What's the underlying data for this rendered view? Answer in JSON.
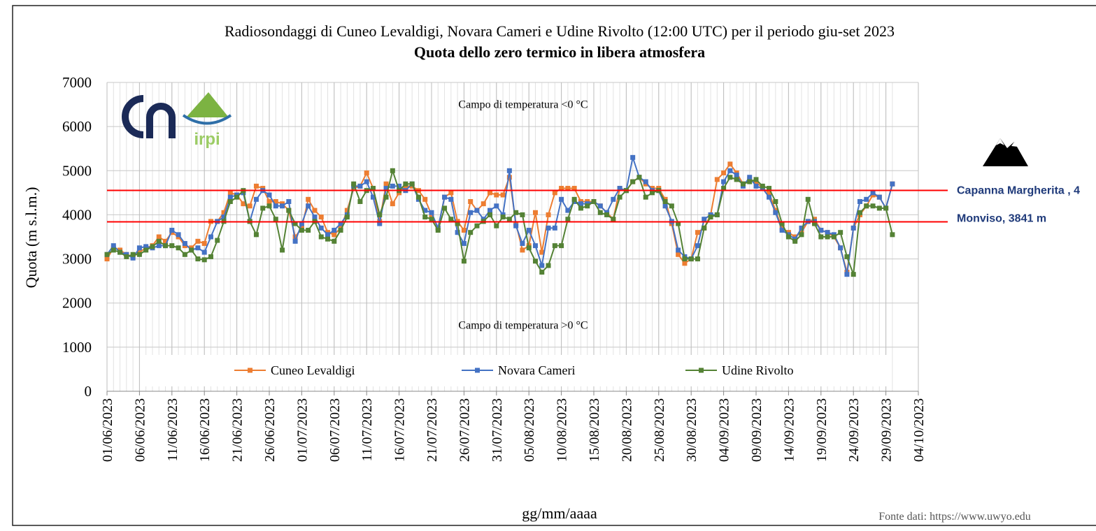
{
  "chart_data": {
    "type": "line",
    "title": "Radiosondaggi di Cuneo Levaldigi, Novara Cameri e Udine Rivolto (12:00 UTC) per il periodo giu-set 2023",
    "subtitle": "Quota dello zero termico in libera atmosfera",
    "y_label": "Quota (m s.l.m.)",
    "x_label": "gg/mm/aaaa",
    "source": "Fonte dati: https://www.uwyo.edu",
    "logo_text": "irpi",
    "annotations": [
      {
        "text": "Campo di temperatura <0 °C",
        "y": 6500
      },
      {
        "text": "Campo di temperatura >0 °C",
        "y": 1500
      }
    ],
    "reference_lines": [
      {
        "label": "Capanna Margherita , 4",
        "value": 4554,
        "color": "#ff0000"
      },
      {
        "label": "Monviso, 3841 m",
        "value": 3841,
        "color": "#ff0000"
      }
    ],
    "x": [
      "01/06/2023",
      "02/06/2023",
      "03/06/2023",
      "04/06/2023",
      "05/06/2023",
      "06/06/2023",
      "07/06/2023",
      "08/06/2023",
      "09/06/2023",
      "10/06/2023",
      "11/06/2023",
      "12/06/2023",
      "13/06/2023",
      "14/06/2023",
      "15/06/2023",
      "16/06/2023",
      "17/06/2023",
      "18/06/2023",
      "19/06/2023",
      "20/06/2023",
      "21/06/2023",
      "22/06/2023",
      "23/06/2023",
      "24/06/2023",
      "25/06/2023",
      "26/06/2023",
      "27/06/2023",
      "28/06/2023",
      "29/06/2023",
      "30/06/2023",
      "01/07/2023",
      "02/07/2023",
      "03/07/2023",
      "04/07/2023",
      "05/07/2023",
      "06/07/2023",
      "07/07/2023",
      "08/07/2023",
      "09/07/2023",
      "10/07/2023",
      "11/07/2023",
      "12/07/2023",
      "13/07/2023",
      "14/07/2023",
      "15/07/2023",
      "16/07/2023",
      "17/07/2023",
      "18/07/2023",
      "19/07/2023",
      "20/07/2023",
      "21/07/2023",
      "22/07/2023",
      "23/07/2023",
      "24/07/2023",
      "25/07/2023",
      "26/07/2023",
      "27/07/2023",
      "28/07/2023",
      "29/07/2023",
      "30/07/2023",
      "31/07/2023",
      "01/08/2023",
      "02/08/2023",
      "03/08/2023",
      "04/08/2023",
      "05/08/2023",
      "06/08/2023",
      "07/08/2023",
      "08/08/2023",
      "09/08/2023",
      "10/08/2023",
      "11/08/2023",
      "12/08/2023",
      "13/08/2023",
      "14/08/2023",
      "15/08/2023",
      "16/08/2023",
      "17/08/2023",
      "18/08/2023",
      "19/08/2023",
      "20/08/2023",
      "21/08/2023",
      "22/08/2023",
      "23/08/2023",
      "24/08/2023",
      "25/08/2023",
      "26/08/2023",
      "27/08/2023",
      "28/08/2023",
      "29/08/2023",
      "30/08/2023",
      "31/08/2023",
      "01/09/2023",
      "02/09/2023",
      "03/09/2023",
      "04/09/2023",
      "05/09/2023",
      "06/09/2023",
      "07/09/2023",
      "08/09/2023",
      "09/09/2023",
      "10/09/2023",
      "11/09/2023",
      "12/09/2023",
      "13/09/2023",
      "14/09/2023",
      "15/09/2023",
      "16/09/2023",
      "17/09/2023",
      "18/09/2023",
      "19/09/2023",
      "20/09/2023",
      "21/09/2023",
      "22/09/2023",
      "23/09/2023",
      "24/09/2023",
      "25/09/2023",
      "26/09/2023",
      "27/09/2023",
      "28/09/2023",
      "29/09/2023",
      "30/09/2023"
    ],
    "series": [
      {
        "name": "Cuneo Levaldigi",
        "color": "#ed7d31",
        "values": [
          3000,
          3250,
          3200,
          3100,
          3050,
          3150,
          3250,
          3300,
          3500,
          3400,
          3600,
          3500,
          3300,
          3250,
          3400,
          3350,
          3850,
          3850,
          4050,
          4500,
          4450,
          4250,
          4200,
          4650,
          4600,
          4300,
          4300,
          4250,
          4100,
          3500,
          3700,
          4350,
          4100,
          3950,
          3600,
          3550,
          3700,
          4100,
          4600,
          4650,
          4950,
          4600,
          3850,
          4700,
          4250,
          4500,
          4650,
          4650,
          4550,
          4350,
          4000,
          3700,
          4400,
          4500,
          3850,
          3650,
          4300,
          4100,
          4250,
          4500,
          4450,
          4450,
          4850,
          3800,
          3200,
          3300,
          4050,
          3150,
          4000,
          4500,
          4600,
          4600,
          4600,
          4300,
          4300,
          4300,
          4200,
          4050,
          3900,
          4600,
          4550,
          4750,
          4850,
          4700,
          4600,
          4600,
          4350,
          3800,
          3100,
          2900,
          3000,
          3600,
          3700,
          4000,
          4800,
          4950,
          5150,
          4950,
          4700,
          4800,
          4750,
          4600,
          4500,
          4100,
          3700,
          3600,
          3500,
          3600,
          3850,
          3900,
          3650,
          3600,
          3500,
          3250,
          2700,
          3700,
          4000,
          4200,
          4450,
          4400,
          4150,
          4700
        ]
      },
      {
        "name": "Novara Cameri",
        "color": "#4472c4",
        "values": [
          3100,
          3300,
          3150,
          3100,
          3020,
          3250,
          3280,
          3250,
          3300,
          3300,
          3650,
          3550,
          3350,
          3200,
          3250,
          3150,
          3500,
          3850,
          3950,
          4400,
          4450,
          4500,
          3850,
          4350,
          4550,
          4450,
          4200,
          4200,
          4300,
          3400,
          3800,
          4200,
          3950,
          3700,
          3550,
          3650,
          3800,
          4000,
          4650,
          4650,
          4750,
          4400,
          3800,
          4600,
          4650,
          4650,
          4550,
          4700,
          4350,
          4100,
          4050,
          3700,
          4400,
          4350,
          3600,
          3350,
          4050,
          4100,
          3900,
          4100,
          4200,
          4000,
          5000,
          3750,
          3350,
          3650,
          3300,
          2850,
          3700,
          3700,
          4350,
          4100,
          4300,
          4250,
          4250,
          4300,
          4200,
          4050,
          4350,
          4600,
          4550,
          5300,
          4850,
          4750,
          4550,
          4550,
          4200,
          3850,
          3200,
          3050,
          3000,
          3300,
          3900,
          4000,
          4000,
          4750,
          5000,
          4900,
          4650,
          4850,
          4650,
          4600,
          4400,
          4050,
          3650,
          3550,
          3450,
          3700,
          3850,
          3850,
          3650,
          3600,
          3550,
          3250,
          2650,
          3700,
          4300,
          4350,
          4500,
          4400,
          4150,
          4700
        ]
      },
      {
        "name": "Udine Rivolto",
        "color": "#548235",
        "values": [
          3100,
          3200,
          3150,
          3050,
          3100,
          3100,
          3200,
          3280,
          3400,
          3300,
          3300,
          3250,
          3100,
          3200,
          3000,
          2980,
          3050,
          3420,
          3850,
          4300,
          4400,
          4550,
          3850,
          3550,
          4150,
          4200,
          3900,
          3200,
          4100,
          3800,
          3650,
          3650,
          3850,
          3500,
          3450,
          3400,
          3650,
          3950,
          4700,
          4300,
          4550,
          4600,
          4000,
          4400,
          5000,
          4550,
          4700,
          4700,
          4400,
          3950,
          3900,
          3650,
          4150,
          3900,
          3800,
          2950,
          3600,
          3750,
          3850,
          4000,
          3750,
          3950,
          3900,
          4050,
          4000,
          3250,
          2950,
          2700,
          2850,
          3300,
          3300,
          3900,
          4350,
          4150,
          4200,
          4300,
          4050,
          4000,
          3900,
          4400,
          4550,
          4750,
          4850,
          4400,
          4500,
          4550,
          4300,
          4200,
          3800,
          3000,
          3000,
          3000,
          3700,
          3950,
          4000,
          4600,
          4850,
          4800,
          4700,
          4750,
          4800,
          4650,
          4600,
          4300,
          3800,
          3500,
          3400,
          3550,
          4350,
          3800,
          3500,
          3500,
          3500,
          3600,
          3050,
          2650,
          4050,
          4200,
          4200,
          4150,
          4150,
          3550
        ]
      }
    ],
    "xlim": [
      "01/06/2023",
      "04/10/2023"
    ],
    "xticks": [
      "01/06/2023",
      "06/06/2023",
      "11/06/2023",
      "16/06/2023",
      "21/06/2023",
      "26/06/2023",
      "01/07/2023",
      "06/07/2023",
      "11/07/2023",
      "16/07/2023",
      "21/07/2023",
      "26/07/2023",
      "31/07/2023",
      "05/08/2023",
      "10/08/2023",
      "15/08/2023",
      "20/08/2023",
      "25/08/2023",
      "30/08/2023",
      "04/09/2023",
      "09/09/2023",
      "14/09/2023",
      "19/09/2023",
      "24/09/2023",
      "29/09/2023",
      "04/10/2023"
    ],
    "ylim": [
      0,
      7000
    ],
    "yticks": [
      0,
      1000,
      2000,
      3000,
      4000,
      5000,
      6000,
      7000
    ],
    "grid": true,
    "legend": "bottom"
  }
}
